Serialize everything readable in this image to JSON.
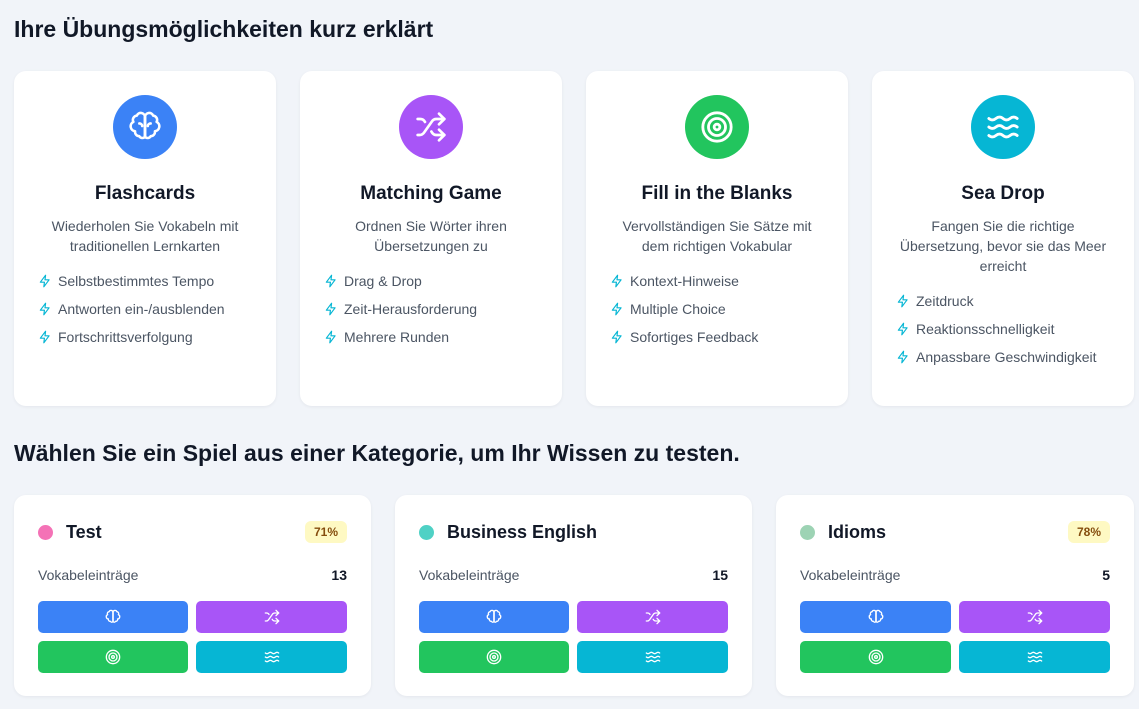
{
  "heading_modes": "Ihre Übungsmöglichkeiten kurz erklärt",
  "heading_categories": "Wählen Sie ein Spiel aus einer Kategorie, um Ihr Wissen zu testen.",
  "modes": [
    {
      "title": "Flashcards",
      "icon": "brain-icon",
      "color": "#3b82f6",
      "description": "Wiederholen Sie Vokabeln mit traditionellen Lernkarten",
      "features": [
        "Selbstbestimmtes Tempo",
        "Antworten ein-/ausblenden",
        "Fortschrittsverfolgung"
      ]
    },
    {
      "title": "Matching Game",
      "icon": "shuffle-icon",
      "color": "#a855f7",
      "description": "Ordnen Sie Wörter ihren Übersetzungen zu",
      "features": [
        "Drag & Drop",
        "Zeit-Herausforderung",
        "Mehrere Runden"
      ]
    },
    {
      "title": "Fill in the Blanks",
      "icon": "target-icon",
      "color": "#22c55e",
      "description": "Vervollständigen Sie Sätze mit dem richtigen Vokabular",
      "features": [
        "Kontext-Hinweise",
        "Multiple Choice",
        "Sofortiges Feedback"
      ]
    },
    {
      "title": "Sea Drop",
      "icon": "waves-icon",
      "color": "#06b6d4",
      "description": "Fangen Sie die richtige Übersetzung, bevor sie das Meer erreicht",
      "features": [
        "Zeitdruck",
        "Reaktionsschnelligkeit",
        "Anpassbare Geschwindigkeit"
      ]
    }
  ],
  "categories": [
    {
      "name": "Test",
      "dot_color": "#f472b6",
      "badge": "71%",
      "label": "Vokabeleinträge",
      "count": "13"
    },
    {
      "name": "Business English",
      "dot_color": "#4fd1c5",
      "badge": "",
      "label": "Vokabeleinträge",
      "count": "15"
    },
    {
      "name": "Idioms",
      "dot_color": "#9dd3b4",
      "badge": "78%",
      "label": "Vokabeleinträge",
      "count": "5"
    }
  ],
  "feature_bolt_color": "#06b6d4"
}
